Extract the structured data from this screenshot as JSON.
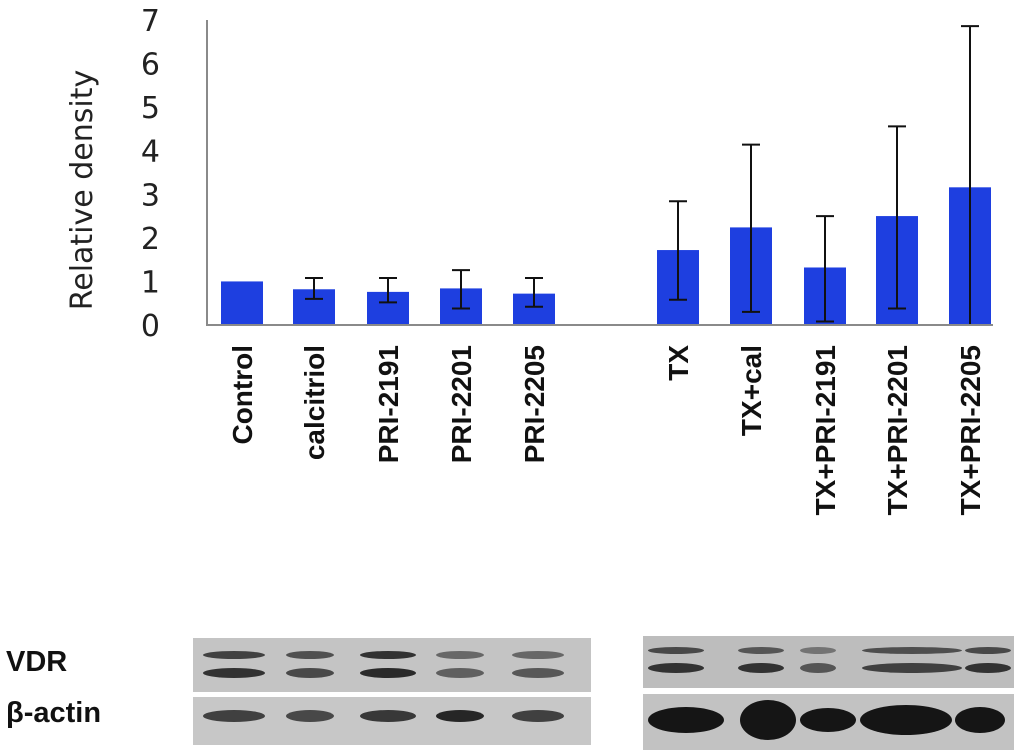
{
  "chart_data": {
    "type": "bar",
    "ylabel": "Relative density",
    "ylim": [
      0,
      7
    ],
    "yticks": [
      0,
      1,
      2,
      3,
      4,
      5,
      6,
      7
    ],
    "grid": false,
    "bar_color": "#1e3fe0",
    "groups": [
      {
        "categories": [
          "Control",
          "calcitriol",
          "PRI-2191",
          "PRI-2201",
          "PRI-2205"
        ]
      },
      {
        "categories": [
          "TX",
          "TX+cal",
          "TX+PRI-2191",
          "TX+PRI-2201",
          "TX+PRI-2205"
        ]
      }
    ],
    "categories": [
      "Control",
      "calcitriol",
      "PRI-2191",
      "PRI-2201",
      "PRI-2205",
      "TX",
      "TX+cal",
      "TX+PRI-2191",
      "TX+PRI-2201",
      "TX+PRI-2205"
    ],
    "values": [
      1.0,
      0.82,
      0.76,
      0.84,
      0.72,
      1.72,
      2.24,
      1.32,
      2.5,
      3.16
    ],
    "error_low": [
      1.0,
      0.6,
      0.52,
      0.38,
      0.42,
      0.58,
      0.3,
      0.08,
      0.38,
      0.0
    ],
    "error_high": [
      1.0,
      1.08,
      1.08,
      1.26,
      1.08,
      2.84,
      4.14,
      2.5,
      4.56,
      6.86
    ]
  },
  "blot": {
    "row_labels": [
      "VDR",
      "β-actin"
    ]
  }
}
